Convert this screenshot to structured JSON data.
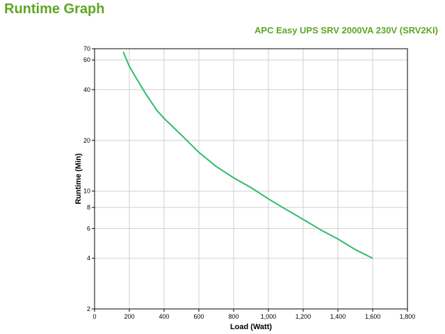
{
  "page": {
    "heading": "Runtime Graph"
  },
  "chart_data": {
    "type": "line",
    "title": "APC Easy UPS SRV 2000VA 230V (SRV2KI)",
    "xlabel": "Load (Watt)",
    "ylabel": "Runtime (Min)",
    "xlim": [
      0,
      1800
    ],
    "ylim": [
      2,
      70
    ],
    "yscale": "log",
    "grid": true,
    "x_ticks": [
      0,
      200,
      400,
      600,
      800,
      1000,
      1200,
      1400,
      1600,
      1800
    ],
    "x_tick_labels": [
      "0",
      "200",
      "400",
      "600",
      "800",
      "1,000",
      "1,200",
      "1,400",
      "1,600",
      "1,800"
    ],
    "y_ticks": [
      2,
      4,
      6,
      8,
      10,
      20,
      40,
      60,
      70
    ],
    "y_tick_labels": [
      "2",
      "4",
      "6",
      "8",
      "10",
      "20",
      "40",
      "60",
      "70"
    ],
    "series": [
      {
        "color": "#2dbb6a",
        "x": [
          165,
          200,
          250,
          300,
          360,
          400,
          500,
          600,
          700,
          800,
          900,
          1000,
          1100,
          1200,
          1300,
          1400,
          1500,
          1600
        ],
        "y": [
          67,
          55,
          45,
          37,
          30,
          27,
          21.5,
          17,
          14,
          12,
          10.5,
          9,
          7.8,
          6.8,
          5.9,
          5.2,
          4.5,
          4.0
        ]
      }
    ]
  }
}
